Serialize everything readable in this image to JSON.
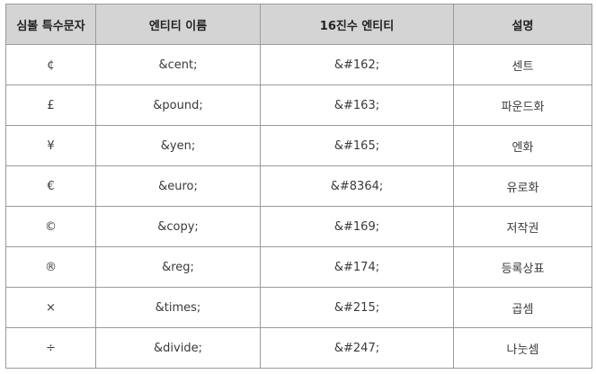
{
  "table": {
    "headers": [
      "심볼 특수문자",
      "엔티티 이름",
      "16진수 엔티티",
      "설명"
    ],
    "rows": [
      {
        "symbol": "¢",
        "entity_name": "&cent;",
        "hex_entity": "&#162;",
        "description": "센트"
      },
      {
        "symbol": "£",
        "entity_name": "&pound;",
        "hex_entity": "&#163;",
        "description": "파운드화"
      },
      {
        "symbol": "¥",
        "entity_name": "&yen;",
        "hex_entity": "&#165;",
        "description": "엔화"
      },
      {
        "symbol": "€",
        "entity_name": "&euro;",
        "hex_entity": "&#8364;",
        "description": "유로화"
      },
      {
        "symbol": "©",
        "entity_name": "&copy;",
        "hex_entity": "&#169;",
        "description": "저작권"
      },
      {
        "symbol": "®",
        "entity_name": "&reg;",
        "hex_entity": "&#174;",
        "description": "등록상표"
      },
      {
        "symbol": "×",
        "entity_name": "&times;",
        "hex_entity": "&#215;",
        "description": "곱셈"
      },
      {
        "symbol": "÷",
        "entity_name": "&divide;",
        "hex_entity": "&#247;",
        "description": "나눗셈"
      }
    ]
  },
  "colors": {
    "header_bg": "#d4d4d4",
    "border": "#9a9a9a"
  }
}
